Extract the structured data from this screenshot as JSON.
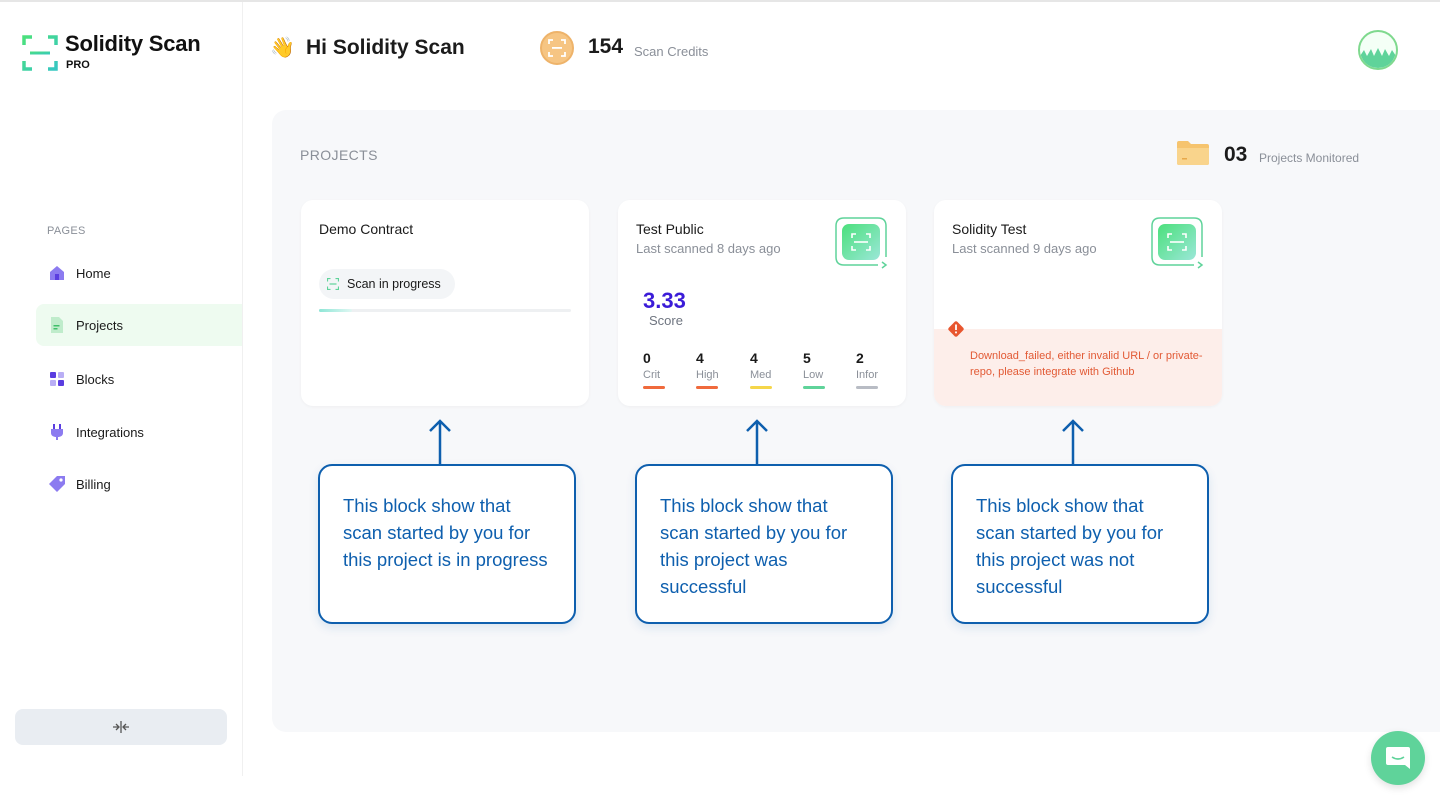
{
  "brand": {
    "name": "Solidity Scan",
    "tier": "PRO"
  },
  "sidebar": {
    "section_label": "PAGES",
    "items": [
      {
        "label": "Home",
        "icon": "home-icon"
      },
      {
        "label": "Projects",
        "icon": "document-icon",
        "active": true
      },
      {
        "label": "Blocks",
        "icon": "blocks-icon"
      },
      {
        "label": "Integrations",
        "icon": "plug-icon"
      },
      {
        "label": "Billing",
        "icon": "tag-icon"
      }
    ],
    "collapse_glyph": "→|←"
  },
  "header": {
    "wave": "👋",
    "greeting": "Hi Solidity Scan",
    "credits_count": "154",
    "credits_label": "Scan Credits"
  },
  "projects": {
    "title": "PROJECTS",
    "monitored_count": "03",
    "monitored_label": "Projects Monitored",
    "cards": [
      {
        "title": "Demo Contract",
        "status_label": "Scan in progress",
        "progress": 0.13
      },
      {
        "title": "Test Public",
        "subtitle": "Last scanned 8 days ago",
        "score": "3.33",
        "score_label": "Score",
        "severities": [
          {
            "count": "0",
            "label": "Crit",
            "color": "#f06a3c"
          },
          {
            "count": "4",
            "label": "High",
            "color": "#f06a3c"
          },
          {
            "count": "4",
            "label": "Med",
            "color": "#f5d64a"
          },
          {
            "count": "5",
            "label": "Low",
            "color": "#5fd39a"
          },
          {
            "count": "2",
            "label": "Infor",
            "color": "#b8bcc4"
          }
        ]
      },
      {
        "title": "Solidity Test",
        "subtitle": "Last scanned 9 days ago",
        "error": "Download_failed, either invalid URL / or private-repo, please integrate with Github"
      }
    ]
  },
  "callouts": [
    "This block show that scan started by you for this project is in progress",
    "This block show that scan started by you for this project was successful",
    "This block show that scan started by you for this project was not successful"
  ],
  "colors": {
    "accent": "#0e5fae",
    "brand_green": "#5fd39a",
    "score": "#3b1cd8",
    "error": "#e25a35"
  }
}
